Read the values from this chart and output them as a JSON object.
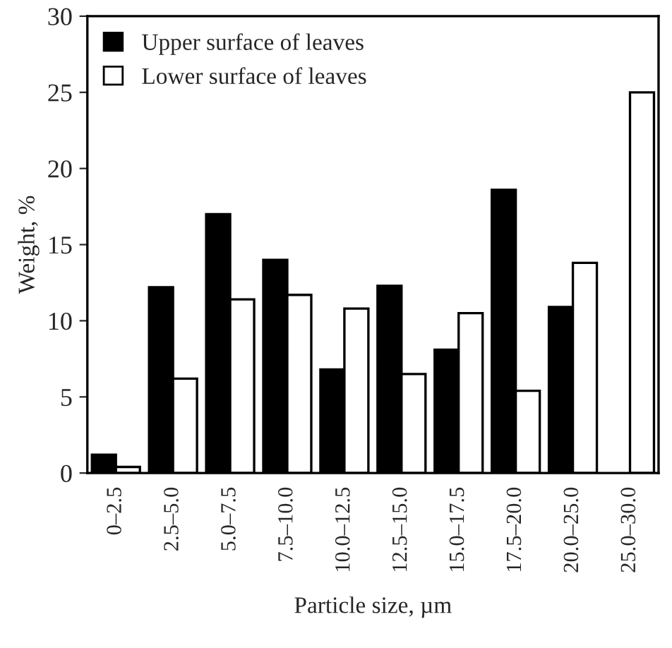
{
  "chart_data": {
    "type": "bar",
    "xlabel": "Particle size, µm",
    "ylabel": "Weight, %",
    "categories": [
      "0–2.5",
      "2.5–5.0",
      "5.0–7.5",
      "7.5–10.0",
      "10.0–12.5",
      "12.5–15.0",
      "15.0–17.5",
      "17.5–20.0",
      "20.0–25.0",
      "25.0–30.0"
    ],
    "series": [
      {
        "name": "Upper surface of leaves",
        "color": "#000000",
        "values": [
          1.2,
          12.2,
          17,
          14,
          6.8,
          12.3,
          8.1,
          18.6,
          10.9,
          null
        ]
      },
      {
        "name": "Lower surface of leaves",
        "color": "#ffffff",
        "values": [
          0.4,
          6.2,
          11.4,
          11.7,
          10.8,
          6.5,
          10.5,
          5.4,
          13.8,
          25
        ]
      }
    ],
    "ylim": [
      0,
      30
    ],
    "yticks": [
      0,
      5,
      10,
      15,
      20,
      25,
      30
    ],
    "grid": false,
    "legend": "top left"
  }
}
